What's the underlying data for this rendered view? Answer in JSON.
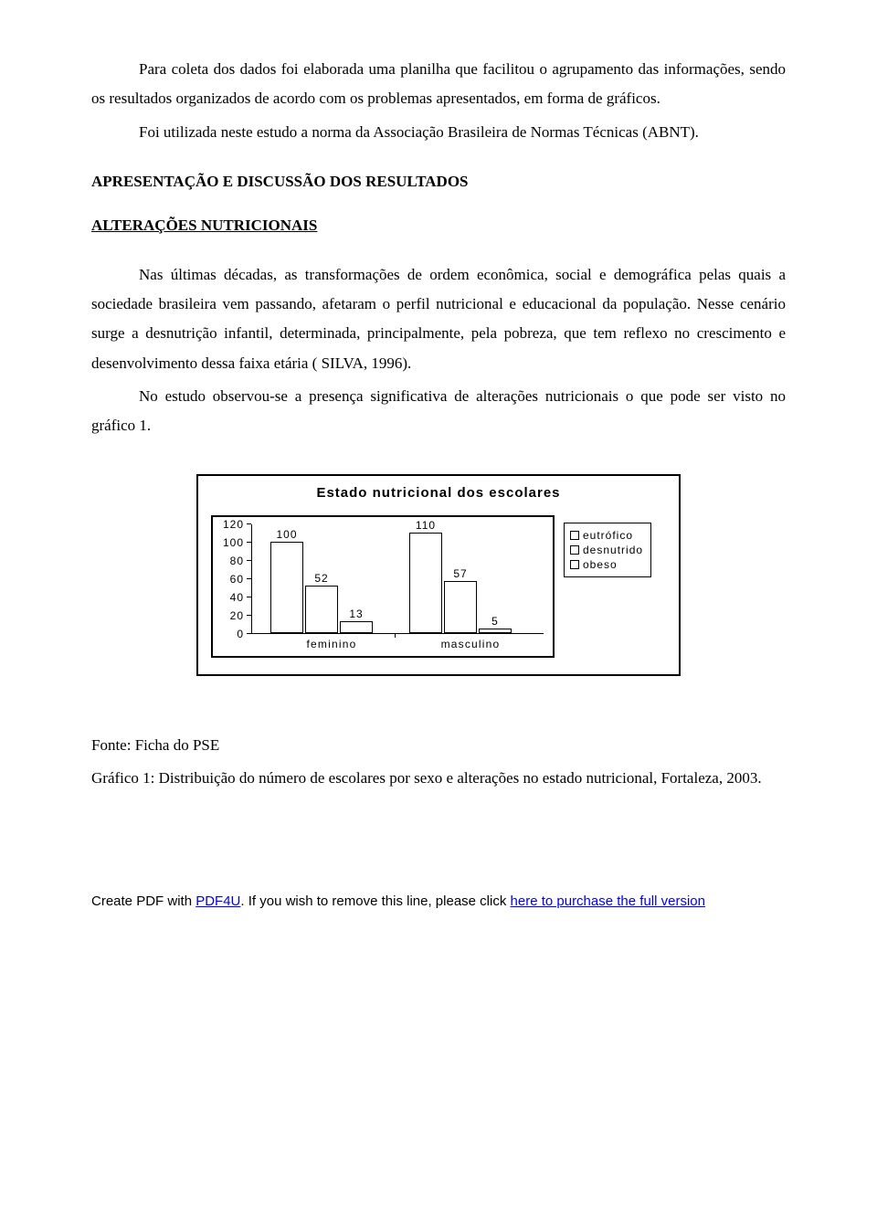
{
  "p1": "Para coleta dos dados foi elaborada uma planilha que facilitou o agrupamento das informações, sendo os resultados organizados de acordo com os problemas apresentados, em forma de gráficos.",
  "p2": "Foi utilizada neste estudo a norma da Associação Brasileira de Normas Técnicas (ABNT).",
  "h1": "APRESENTAÇÃO E DISCUSSÃO DOS RESULTADOS",
  "h2": "ALTERAÇÕES NUTRICIONAIS",
  "p3": "Nas últimas décadas, as transformações de ordem econômica, social e demográfica pelas quais a sociedade brasileira vem passando, afetaram o perfil nutricional e educacional da população. Nesse cenário surge a desnutrição infantil, determinada, principalmente, pela pobreza, que tem reflexo no crescimento e desenvolvimento dessa faixa etária ( SILVA, 1996).",
  "p4": "No estudo observou-se a presença significativa de alterações nutricionais o que pode ser visto no gráfico 1.",
  "chart": {
    "type": "bar",
    "title": "Estado nutricional dos escolares",
    "background_color": "#ffffff",
    "border_color": "#000000",
    "y": {
      "min": 0,
      "max": 120,
      "step": 20,
      "ticks": [
        "0",
        "20",
        "40",
        "60",
        "80",
        "100",
        "120"
      ]
    },
    "categories": [
      "feminino",
      "masculino"
    ],
    "series": [
      {
        "name": "eutrófico",
        "label": "eutrófico",
        "color": "#ffffff",
        "values": [
          100,
          110
        ]
      },
      {
        "name": "desnutrido",
        "label": "desnutrido",
        "color": "#ffffff",
        "values": [
          52,
          57
        ]
      },
      {
        "name": "obeso",
        "label": "obeso",
        "color": "#ffffff",
        "values": [
          13,
          5
        ]
      }
    ]
  },
  "p5": "Fonte: Ficha do PSE",
  "p6": "Gráfico 1: Distribuição do número de escolares por sexo e alterações no estado nutricional, Fortaleza, 2003.",
  "footer": {
    "prefix": "Create PDF with ",
    "link1": "PDF4U",
    "middle": ". If you wish to remove this line, please click ",
    "link2": "here to purchase the full version"
  }
}
